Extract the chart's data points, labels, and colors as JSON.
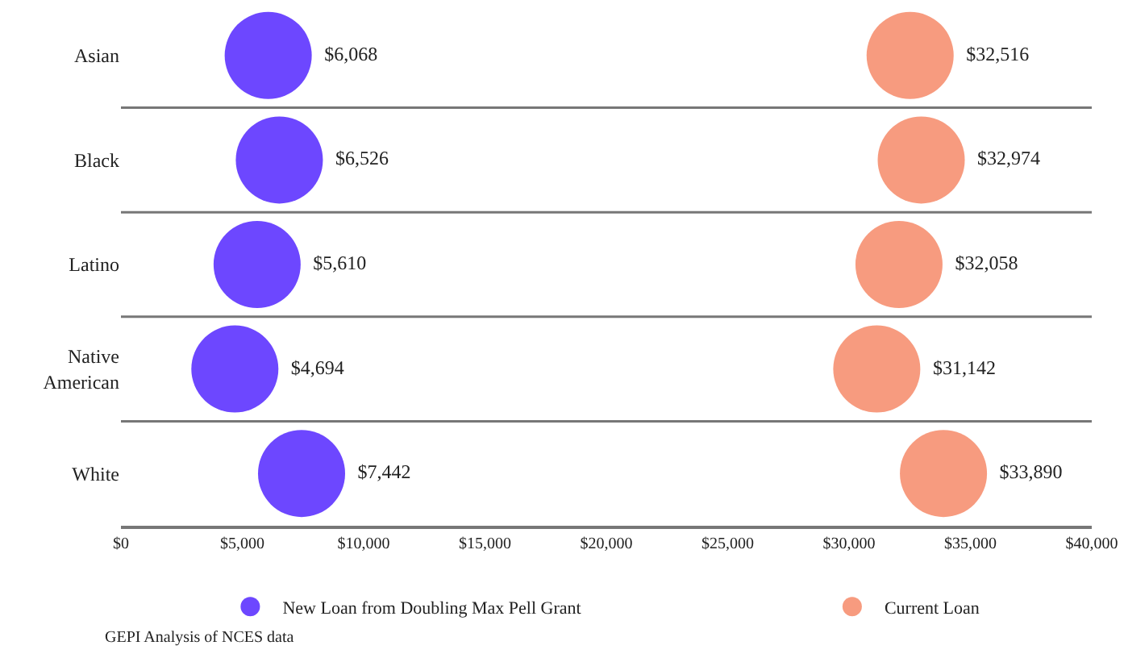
{
  "chart_data": {
    "type": "scatter",
    "orientation": "horizontal",
    "categories": [
      "Asian",
      "Black",
      "Latino",
      "Native American",
      "White"
    ],
    "series": [
      {
        "name": "New Loan from Doubling Max Pell Grant",
        "color": "#6d47ff",
        "values": [
          6068,
          6526,
          5610,
          4694,
          7442
        ],
        "value_labels": [
          "$6,068",
          "$6,526",
          "$5,610",
          "$4,694",
          "$7,442"
        ]
      },
      {
        "name": "Current Loan",
        "color": "#f79b7f",
        "values": [
          32516,
          32974,
          32058,
          31142,
          33890
        ],
        "value_labels": [
          "$32,516",
          "$32,974",
          "$32,058",
          "$31,142",
          "$33,890"
        ]
      }
    ],
    "xlim": [
      0,
      40000
    ],
    "xticks": [
      {
        "value": 0,
        "label": "$0"
      },
      {
        "value": 5000,
        "label": "$5,000"
      },
      {
        "value": 10000,
        "label": "$10,000"
      },
      {
        "value": 15000,
        "label": "$15,000"
      },
      {
        "value": 20000,
        "label": "$20,000"
      },
      {
        "value": 25000,
        "label": "$25,000"
      },
      {
        "value": 30000,
        "label": "$30,000"
      },
      {
        "value": 35000,
        "label": "$35,000"
      },
      {
        "value": 40000,
        "label": "$40,000"
      }
    ],
    "grid": "y",
    "legend": "bottom",
    "marker": "circle",
    "annotations": [
      "GEPI Analysis of NCES data"
    ]
  }
}
